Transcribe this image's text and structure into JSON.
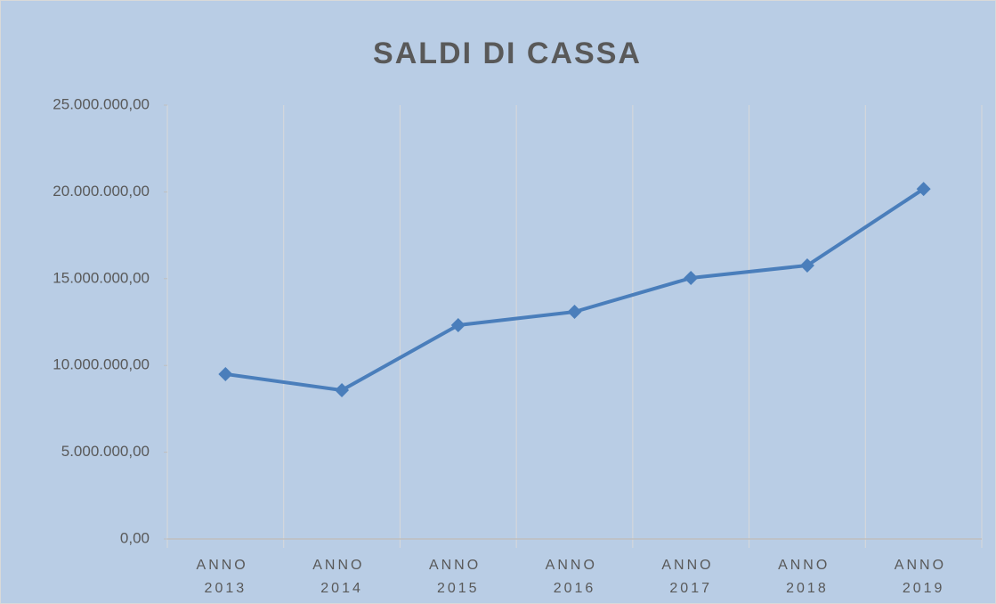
{
  "chart_data": {
    "type": "line",
    "title": "SALDI DI CASSA",
    "categories": [
      "ANNO 2013",
      "ANNO 2014",
      "ANNO 2015",
      "ANNO 2016",
      "ANNO 2017",
      "ANNO 2018",
      "ANNO 2019"
    ],
    "values": [
      9500000,
      8570000,
      12320000,
      13090000,
      15040000,
      15760000,
      20170000
    ],
    "color": "#4a7ebb",
    "ylim": [
      0,
      25000000
    ],
    "yticks": [
      {
        "value": 0,
        "label": "0,00"
      },
      {
        "value": 5000000,
        "label": "5.000.000,00"
      },
      {
        "value": 10000000,
        "label": "10.000.000,00"
      },
      {
        "value": 15000000,
        "label": "15.000.000,00"
      },
      {
        "value": 20000000,
        "label": "20.000.000,00"
      },
      {
        "value": 25000000,
        "label": "25.000.000,00"
      }
    ]
  }
}
